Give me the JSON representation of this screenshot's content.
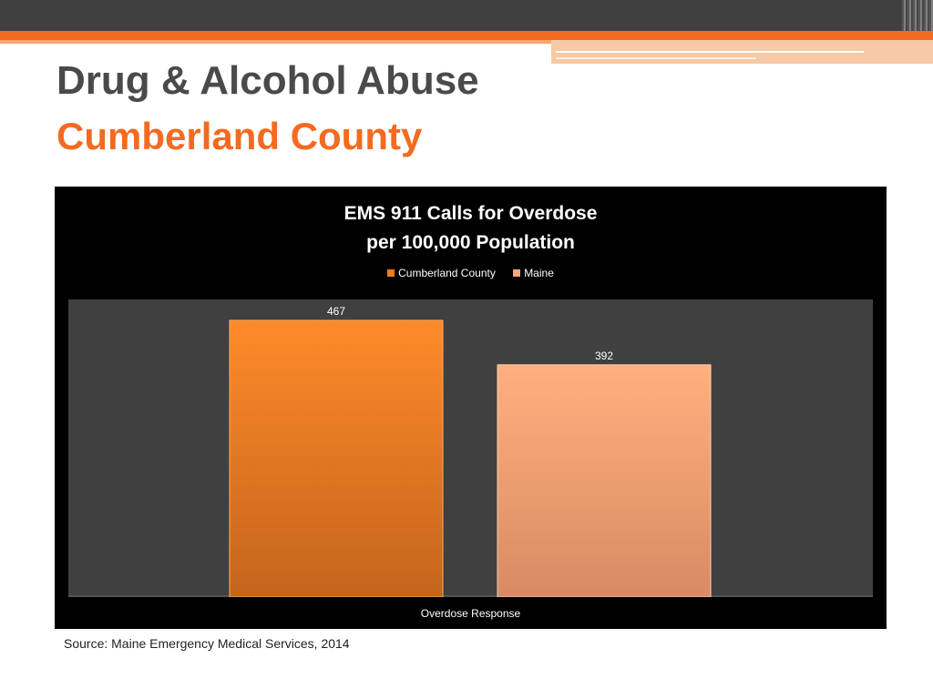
{
  "slide": {
    "title": "Drug & Alcohol Abuse",
    "subtitle": "Cumberland County",
    "source": "Source: Maine Emergency Medical Services, 2014"
  },
  "colors": {
    "accent": "#f26b21",
    "header_dark": "#404040",
    "plot_bg": "#404040",
    "chart_bg": "#000000"
  },
  "chart_data": {
    "type": "bar",
    "title_lines": [
      "EMS 911 Calls for Overdose",
      "per 100,000 Population"
    ],
    "categories": [
      "Overdose Response"
    ],
    "series": [
      {
        "name": "Cumberland County",
        "values": [
          467
        ],
        "color": "#f07a1c"
      },
      {
        "name": "Maine",
        "values": [
          392
        ],
        "color": "#f8a878"
      }
    ],
    "xlabel": "Overdose Response",
    "ylim": [
      0,
      500
    ],
    "grid": false,
    "legend_position": "top"
  }
}
